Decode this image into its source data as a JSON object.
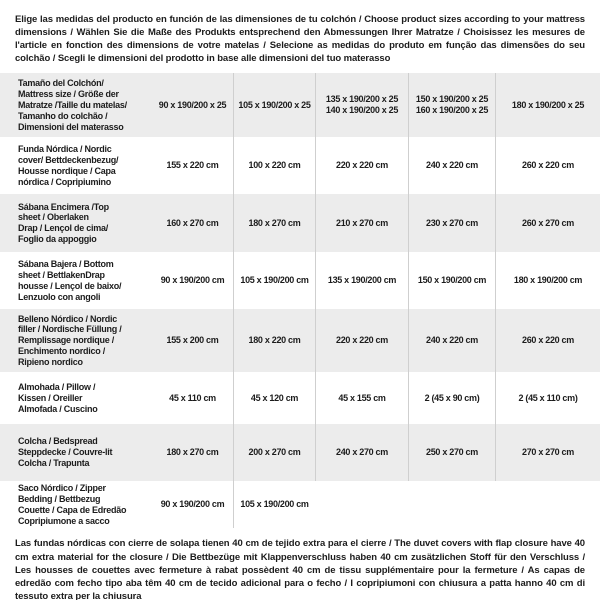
{
  "header": {
    "text": "Elige las medidas del producto en función de las dimensiones de tu colchón / Choose product sizes according to your mattress dimensions / Wählen Sie die Maße des Produkts entsprechend den Abmessungen Ihrer Matratze / Choisissez les mesures de l'article en fonction des dimensions de votre matelas / Selecione as medidas do produto em função das dimensões do seu colchão / Scegli le dimensioni del prodotto in base alle dimensioni del tuo materasso"
  },
  "table": {
    "rows": [
      {
        "label": "Tamaño del Colchón/\nMattress size / Größe der\nMatratze /Taille du matelas/\nTamanho do colchão /\nDimensioni del materasso",
        "values": [
          "90 x 190/200 x 25",
          "105 x 190/200 x 25",
          "135 x 190/200 x 25\n140 x 190/200 x 25",
          "150 x 190/200 x 25\n160 x 190/200 x 25",
          "180 x 190/200 x 25"
        ]
      },
      {
        "label": "Funda Nórdica /  Nordic\ncover/ Bettdeckenbezug/\nHousse nordique  / Capa\nnórdica / Copripiumino",
        "values": [
          "155 x 220 cm",
          "100 x 220 cm",
          "220 x 220 cm",
          "240 x 220 cm",
          "260 x 220 cm"
        ]
      },
      {
        "label": "Sábana Encimera /Top\nsheet / Oberlaken\nDrap / Lençol de cima/\nFoglio da appoggio",
        "values": [
          "160 x 270 cm",
          "180 x 270 cm",
          "210 x 270 cm",
          "230 x 270 cm",
          "260 x 270 cm"
        ]
      },
      {
        "label": "Sábana Bajera / Bottom\nsheet / BettlakenDrap\nhousse / Lençol de baixo/\nLenzuolo con angoli",
        "values": [
          "90 x 190/200 cm",
          "105 x 190/200 cm",
          "135 x 190/200 cm",
          "150 x 190/200 cm",
          "180 x 190/200 cm"
        ]
      },
      {
        "label": "Belleno Nórdico / Nordic\nfiller / Nordische Füllung /\nRemplissage nordique /\nEnchimento nordico /\nRipieno nordico",
        "values": [
          "155 x 200 cm",
          "180 x 220 cm",
          "220 x 220 cm",
          "240 x 220 cm",
          "260 x 220 cm"
        ]
      },
      {
        "label": "Almohada  / Pillow /\nKissen / Oreiller\nAlmofada / Cuscino",
        "values": [
          "45 x 110 cm",
          "45 x 120 cm",
          "45 x 155 cm",
          "2 (45 x 90 cm)",
          "2 (45 x 110 cm)"
        ]
      },
      {
        "label": "Colcha / Bedspread\nSteppdecke / Couvre-lit\nColcha / Trapunta",
        "values": [
          "180 x 270 cm",
          "200 x 270 cm",
          "240 x 270 cm",
          "250 x 270 cm",
          "270 x 270 cm"
        ]
      },
      {
        "label": "Saco Nórdico / Zipper\nBedding / Bettbezug\nCouette  / Capa de Edredão\nCopripiumone a sacco",
        "values": [
          "90 x 190/200 cm",
          "105 x 190/200 cm",
          "",
          "",
          ""
        ]
      }
    ]
  },
  "footer": {
    "text": "Las fundas nórdicas con cierre de solapa tienen 40 cm de tejido extra para el cierre  / The duvet covers with flap closure have 40 cm extra material for the closure / Die Bettbezüge mit Klappenverschluss haben 40 cm zusätzlichen Stoff für den Verschluss / Les housses de couettes avec fermeture à rabat possèdent 40 cm de tissu supplémentaire pour la fermeture / As capas de edredão com fecho tipo aba têm 40 cm de tecido adicional para o fecho / I copripiumoni con chiusura a patta hanno 40 cm di tessuto extra per la chiusura"
  },
  "colors": {
    "row_alt": "#ececec",
    "divider": "#cfcfcf",
    "text": "#1c1c1c",
    "background": "#ffffff"
  }
}
